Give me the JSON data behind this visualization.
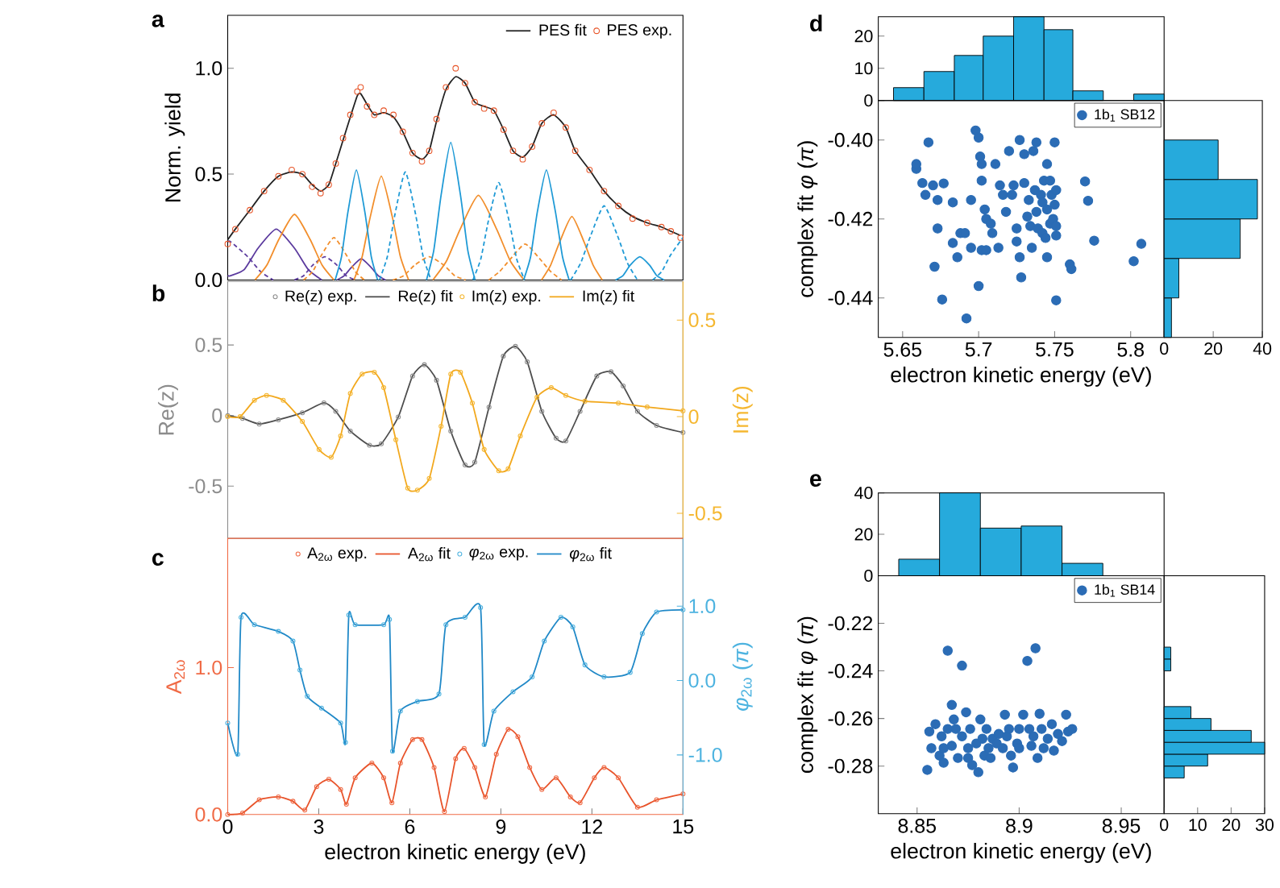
{
  "chart_data": [
    {
      "type": "line",
      "annotations": [
        "a"
      ],
      "ylabel": "Norm. yield",
      "xlim": [
        0,
        15
      ],
      "ylim": [
        0,
        1.25
      ],
      "yticks": [
        {
          "value": 0,
          "label": "0.0"
        },
        0.5,
        {
          "value": 1,
          "label": "1.0"
        }
      ],
      "tick_labels": "y",
      "legend": "top right",
      "series": [
        {
          "name": "PES fit",
          "type": "line",
          "color": "#222222",
          "x": [
            0,
            0.25,
            0.73,
            1.2,
            1.67,
            2.11,
            2.46,
            2.78,
            3.06,
            3.33,
            3.56,
            3.8,
            4.04,
            4.27,
            4.38,
            4.59,
            4.83,
            5.14,
            5.46,
            5.77,
            6.09,
            6.4,
            6.64,
            6.88,
            7.19,
            7.51,
            7.82,
            8.14,
            8.45,
            8.77,
            9.09,
            9.4,
            9.72,
            10.03,
            10.35,
            10.74,
            11.14,
            11.45,
            11.92,
            12.4,
            12.87,
            13.34,
            13.82,
            14.29,
            14.6,
            14.92
          ],
          "values": [
            0.19,
            0.24,
            0.33,
            0.42,
            0.49,
            0.51,
            0.5,
            0.45,
            0.42,
            0.45,
            0.55,
            0.66,
            0.77,
            0.87,
            0.88,
            0.83,
            0.78,
            0.79,
            0.77,
            0.7,
            0.6,
            0.57,
            0.61,
            0.75,
            0.9,
            0.96,
            0.93,
            0.84,
            0.82,
            0.8,
            0.71,
            0.61,
            0.58,
            0.63,
            0.74,
            0.78,
            0.72,
            0.61,
            0.52,
            0.42,
            0.35,
            0.3,
            0.27,
            0.25,
            0.23,
            0.21
          ]
        },
        {
          "name": "PES exp.",
          "type": "scatter",
          "marker": "circle",
          "color": "#e8562a",
          "x": [
            0,
            0.25,
            0.73,
            1.2,
            1.67,
            2.11,
            2.46,
            2.78,
            3.06,
            3.33,
            3.56,
            3.8,
            4.04,
            4.27,
            4.38,
            4.59,
            4.83,
            5.14,
            5.46,
            5.77,
            6.09,
            6.4,
            6.64,
            6.88,
            7.19,
            7.51,
            7.82,
            8.14,
            8.45,
            8.77,
            9.09,
            9.4,
            9.72,
            10.03,
            10.35,
            10.74,
            11.14,
            11.45,
            11.92,
            12.4,
            12.87,
            13.34,
            13.82,
            14.29,
            14.6,
            14.92
          ],
          "values": [
            0.17,
            0.24,
            0.33,
            0.42,
            0.49,
            0.52,
            0.5,
            0.44,
            0.41,
            0.45,
            0.55,
            0.67,
            0.78,
            0.89,
            0.91,
            0.82,
            0.78,
            0.8,
            0.78,
            0.7,
            0.6,
            0.56,
            0.61,
            0.76,
            0.91,
            1.0,
            0.93,
            0.84,
            0.81,
            0.8,
            0.71,
            0.61,
            0.57,
            0.63,
            0.74,
            0.79,
            0.72,
            0.61,
            0.52,
            0.42,
            0.35,
            0.29,
            0.27,
            0.25,
            0.23,
            0.2
          ]
        },
        {
          "type": "line",
          "color": "#5b3a9e",
          "line_style": "solid",
          "x": [
            0,
            0.1,
            0.55,
            1.0,
            1.6,
            2.2,
            2.65,
            3.1
          ],
          "values": [
            0.02,
            0.02,
            0.05,
            0.15,
            0.24,
            0.15,
            0.05,
            0
          ]
        },
        {
          "type": "line",
          "color": "#5b3a9e",
          "line_style": "dashed",
          "x": [
            0,
            0.1,
            0.66,
            1.08,
            1.5
          ],
          "values": [
            0.18,
            0.18,
            0.11,
            0.04,
            0
          ]
        },
        {
          "type": "line",
          "color": "#5b3a9e",
          "line_style": "dashed",
          "x": [
            2.2,
            2.5,
            2.8,
            3.2,
            3.6,
            3.9,
            4.2
          ],
          "values": [
            0,
            0.02,
            0.07,
            0.11,
            0.07,
            0.02,
            0
          ]
        },
        {
          "type": "line",
          "color": "#5b3a9e",
          "line_style": "solid",
          "x": [
            3.6,
            3.84,
            4.08,
            4.4,
            4.72,
            4.96,
            5.2
          ],
          "values": [
            0,
            0.02,
            0.06,
            0.1,
            0.06,
            0.02,
            0
          ]
        },
        {
          "type": "line",
          "color": "#f28e2b",
          "line_style": "solid",
          "x": [
            0.9,
            1.29,
            1.68,
            2.2,
            2.72,
            3.11,
            3.5
          ],
          "values": [
            0,
            0.07,
            0.19,
            0.31,
            0.19,
            0.07,
            0
          ]
        },
        {
          "type": "line",
          "color": "#f28e2b",
          "line_style": "solid",
          "x": [
            4.16,
            4.43,
            4.7,
            5.06,
            5.42,
            5.69,
            5.96
          ],
          "values": [
            0,
            0.11,
            0.3,
            0.49,
            0.3,
            0.11,
            0
          ]
        },
        {
          "type": "line",
          "color": "#f28e2b",
          "line_style": "solid",
          "x": [
            6.76,
            7.21,
            7.66,
            8.26,
            8.86,
            9.31,
            9.76
          ],
          "values": [
            0,
            0.09,
            0.24,
            0.4,
            0.24,
            0.09,
            0
          ]
        },
        {
          "type": "line",
          "color": "#f28e2b",
          "line_style": "solid",
          "x": [
            10.34,
            10.64,
            10.94,
            11.34,
            11.74,
            12.04,
            12.34
          ],
          "values": [
            0,
            0.07,
            0.18,
            0.3,
            0.18,
            0.07,
            0
          ]
        },
        {
          "type": "line",
          "color": "#f28e2b",
          "line_style": "dashed",
          "x": [
            2.5,
            2.8,
            3.1,
            3.5,
            3.9,
            4.2,
            4.5
          ],
          "values": [
            0,
            0.04,
            0.12,
            0.2,
            0.12,
            0.04,
            0
          ]
        },
        {
          "type": "line",
          "color": "#f28e2b",
          "line_style": "dashed",
          "x": [
            5.44,
            5.8,
            6.16,
            6.64,
            7.12,
            7.48,
            7.84
          ],
          "values": [
            0,
            0.02,
            0.07,
            0.11,
            0.07,
            0.02,
            0
          ]
        },
        {
          "type": "line",
          "color": "#f28e2b",
          "line_style": "dashed",
          "x": [
            8.6,
            8.96,
            9.32,
            9.8,
            10.28,
            10.64,
            11.0
          ],
          "values": [
            0,
            0.04,
            0.1,
            0.17,
            0.1,
            0.04,
            0
          ]
        },
        {
          "type": "line",
          "color": "#1f9ad6",
          "line_style": "solid",
          "x": [
            3.54,
            3.75,
            3.96,
            4.24,
            4.52,
            4.73,
            4.94
          ],
          "values": [
            0,
            0.11,
            0.32,
            0.52,
            0.32,
            0.11,
            0
          ]
        },
        {
          "type": "line",
          "color": "#1f9ad6",
          "line_style": "solid",
          "x": [
            6.55,
            6.79,
            7.03,
            7.35,
            7.67,
            7.91,
            8.15
          ],
          "values": [
            0,
            0.14,
            0.4,
            0.65,
            0.4,
            0.14,
            0
          ]
        },
        {
          "type": "line",
          "color": "#1f9ad6",
          "line_style": "solid",
          "x": [
            9.75,
            9.98,
            10.2,
            10.5,
            10.8,
            11.03,
            11.25
          ],
          "values": [
            0,
            0.11,
            0.32,
            0.52,
            0.32,
            0.11,
            0
          ]
        },
        {
          "type": "line",
          "color": "#1f9ad6",
          "line_style": "solid",
          "x": [
            12.78,
            13.02,
            13.26,
            13.58,
            13.9,
            14.14,
            14.38
          ],
          "values": [
            0,
            0.02,
            0.07,
            0.11,
            0.07,
            0.02,
            0
          ]
        },
        {
          "type": "line",
          "color": "#1f9ad6",
          "line_style": "dashed",
          "x": [
            5.0,
            5.26,
            5.51,
            5.85,
            6.19,
            6.44,
            6.7
          ],
          "values": [
            0,
            0.11,
            0.31,
            0.51,
            0.31,
            0.11,
            0
          ]
        },
        {
          "type": "line",
          "color": "#1f9ad6",
          "line_style": "dashed",
          "x": [
            8.08,
            8.34,
            8.59,
            8.93,
            9.27,
            9.52,
            9.78
          ],
          "values": [
            0,
            0.1,
            0.28,
            0.46,
            0.28,
            0.1,
            0
          ]
        },
        {
          "type": "line",
          "color": "#1f9ad6",
          "line_style": "dashed",
          "x": [
            11.3,
            11.63,
            11.96,
            12.4,
            12.84,
            13.17,
            13.5
          ],
          "values": [
            0,
            0.08,
            0.21,
            0.35,
            0.21,
            0.08,
            0
          ]
        },
        {
          "type": "line",
          "color": "#1f9ad6",
          "line_style": "dashed",
          "x": [
            14.0,
            14.3,
            14.6,
            15
          ],
          "values": [
            0,
            0.04,
            0.12,
            0.2
          ]
        }
      ]
    },
    {
      "type": "line",
      "annotations": [
        "b"
      ],
      "ylabel": "Re(z)",
      "y2label": "Im(z)",
      "xlim": [
        0,
        15
      ],
      "ylim": [
        -0.87,
        0.95
      ],
      "yticks": [
        -0.5,
        0,
        0.5
      ],
      "y2lim": [
        -0.63,
        0.7
      ],
      "y2ticks": [
        -0.5,
        0,
        0.5
      ],
      "tick_labels": "y",
      "legend": "top",
      "series": [
        {
          "name": "Re(z) exp.",
          "type": "scatter",
          "marker": "circle",
          "color": "#8c8c8c",
          "x": [
            0,
            0.49,
            1.04,
            1.67,
            2.46,
            3.17,
            3.56,
            4.04,
            4.67,
            5.06,
            5.62,
            6.09,
            6.48,
            6.88,
            7.35,
            7.82,
            8.14,
            8.61,
            9.08,
            9.48,
            9.87,
            10.35,
            10.82,
            11.14,
            11.61,
            12.16,
            12.63,
            13.03,
            13.5,
            14.13,
            15
          ],
          "values": [
            0,
            -0.02,
            -0.06,
            -0.03,
            0.02,
            0.09,
            0.03,
            -0.11,
            -0.21,
            -0.2,
            -0.01,
            0.28,
            0.36,
            0.25,
            -0.11,
            -0.35,
            -0.33,
            0.06,
            0.42,
            0.49,
            0.38,
            0.03,
            -0.16,
            -0.18,
            0.03,
            0.28,
            0.31,
            0.21,
            0.03,
            -0.07,
            -0.12
          ]
        },
        {
          "name": "Re(z) fit",
          "type": "line",
          "color": "#4d4d4d",
          "x": [
            0,
            0.49,
            1.04,
            1.67,
            2.46,
            3.17,
            3.56,
            4.04,
            4.67,
            5.06,
            5.62,
            6.09,
            6.48,
            6.88,
            7.35,
            7.82,
            8.14,
            8.61,
            9.08,
            9.48,
            9.87,
            10.35,
            10.82,
            11.14,
            11.61,
            12.16,
            12.63,
            13.03,
            13.5,
            14.13,
            15
          ],
          "values": [
            0,
            -0.02,
            -0.06,
            -0.03,
            0.02,
            0.09,
            0.03,
            -0.11,
            -0.21,
            -0.2,
            -0.01,
            0.28,
            0.36,
            0.25,
            -0.11,
            -0.35,
            -0.33,
            0.06,
            0.42,
            0.49,
            0.38,
            0.03,
            -0.16,
            -0.18,
            0.03,
            0.28,
            0.31,
            0.21,
            0.03,
            -0.07,
            -0.12
          ]
        },
        {
          "name": "Im(z) exp.",
          "type": "scatter",
          "marker": "circle",
          "axis": "y2",
          "color": "#f5b730",
          "x": [
            0,
            0.41,
            0.88,
            1.28,
            1.83,
            2.46,
            3.01,
            3.41,
            3.72,
            4.04,
            4.43,
            4.83,
            5.14,
            5.54,
            5.93,
            6.25,
            6.64,
            7.03,
            7.35,
            7.67,
            8.06,
            8.45,
            8.93,
            9.24,
            9.64,
            10.19,
            10.66,
            11.14,
            11.77,
            12.87,
            13.82,
            15
          ],
          "values": [
            0,
            0,
            0.085,
            0.11,
            0.085,
            -0.025,
            -0.17,
            -0.21,
            -0.1,
            0.12,
            0.22,
            0.23,
            0.15,
            -0.12,
            -0.37,
            -0.38,
            -0.32,
            -0.05,
            0.22,
            0.23,
            0.07,
            -0.17,
            -0.28,
            -0.27,
            -0.1,
            0.1,
            0.15,
            0.11,
            0.08,
            0.07,
            0.05,
            0.03
          ]
        },
        {
          "name": "Im(z) fit",
          "type": "line",
          "axis": "y2",
          "color": "#f2a81d",
          "x": [
            0,
            0.41,
            0.88,
            1.28,
            1.83,
            2.46,
            3.01,
            3.41,
            3.72,
            4.04,
            4.43,
            4.83,
            5.14,
            5.54,
            5.93,
            6.25,
            6.64,
            7.03,
            7.35,
            7.67,
            8.06,
            8.45,
            8.93,
            9.24,
            9.64,
            10.19,
            10.66,
            11.14,
            11.77,
            12.87,
            13.82,
            15
          ],
          "values": [
            0,
            0,
            0.085,
            0.11,
            0.085,
            -0.025,
            -0.17,
            -0.21,
            -0.1,
            0.12,
            0.22,
            0.23,
            0.15,
            -0.12,
            -0.37,
            -0.38,
            -0.32,
            -0.05,
            0.22,
            0.23,
            0.07,
            -0.17,
            -0.28,
            -0.27,
            -0.1,
            0.1,
            0.15,
            0.11,
            0.08,
            0.07,
            0.05,
            0.03
          ]
        }
      ]
    },
    {
      "type": "line",
      "annotations": [
        "c"
      ],
      "xlabel": "electron kinetic energy (eV)",
      "ylabel": "A$_{2ω}$",
      "y2label": "*φ*$_{2ω}$ (*π*)",
      "xlim": [
        0,
        15
      ],
      "xticks": [
        0,
        3,
        6,
        9,
        12,
        15
      ],
      "ylim": [
        0,
        1.88
      ],
      "yticks": [
        {
          "value": 0,
          "label": "0.0"
        },
        {
          "value": 1,
          "label": "1.0"
        }
      ],
      "y2lim": [
        -1.8,
        1.91
      ],
      "y2ticks": [
        {
          "value": -1,
          "label": "-1.0"
        },
        {
          "value": 0,
          "label": "0.0"
        },
        {
          "value": 1,
          "label": "1.0"
        }
      ],
      "legend": "top",
      "series": [
        {
          "name": "A$_{2ω}$ exp.",
          "type": "scatter",
          "marker": "circle",
          "color": "#f06a45",
          "x": [
            0,
            0.49,
            1.04,
            1.67,
            2.15,
            2.54,
            2.93,
            3.33,
            3.72,
            3.91,
            4.2,
            4.75,
            5.14,
            5.41,
            5.69,
            6.09,
            6.4,
            6.8,
            7.14,
            7.51,
            7.79,
            8.14,
            8.49,
            8.85,
            9.24,
            9.56,
            9.95,
            10.35,
            10.82,
            11.29,
            11.61,
            12.08,
            12.4,
            12.87,
            13.5,
            14.13,
            15
          ],
          "values": [
            0,
            0.01,
            0.1,
            0.12,
            0.09,
            0.03,
            0.19,
            0.24,
            0.17,
            0.07,
            0.25,
            0.35,
            0.25,
            0.08,
            0.35,
            0.51,
            0.51,
            0.32,
            0.02,
            0.38,
            0.45,
            0.32,
            0.12,
            0.41,
            0.58,
            0.53,
            0.32,
            0.17,
            0.25,
            0.12,
            0.08,
            0.25,
            0.32,
            0.25,
            0.05,
            0.1,
            0.14
          ]
        },
        {
          "name": "A$_{2ω}$ fit",
          "type": "line",
          "color": "#e8532a",
          "x": [
            0,
            0.49,
            1.04,
            1.67,
            2.15,
            2.54,
            2.93,
            3.33,
            3.72,
            3.91,
            4.2,
            4.75,
            5.14,
            5.41,
            5.69,
            6.09,
            6.4,
            6.8,
            7.14,
            7.51,
            7.79,
            8.14,
            8.49,
            8.85,
            9.24,
            9.56,
            9.95,
            10.35,
            10.82,
            11.29,
            11.61,
            12.08,
            12.4,
            12.87,
            13.5,
            14.13,
            15
          ],
          "values": [
            0,
            0.01,
            0.1,
            0.12,
            0.09,
            0.03,
            0.19,
            0.24,
            0.17,
            0.07,
            0.25,
            0.35,
            0.25,
            0.08,
            0.35,
            0.51,
            0.51,
            0.32,
            0.02,
            0.38,
            0.45,
            0.32,
            0.12,
            0.41,
            0.58,
            0.53,
            0.32,
            0.17,
            0.25,
            0.12,
            0.08,
            0.25,
            0.32,
            0.25,
            0.05,
            0.1,
            0.14
          ]
        },
        {
          "name": "*φ*$_{2ω}$ exp.",
          "type": "scatter",
          "marker": "circle",
          "axis": "y2",
          "color": "#4db3e0",
          "x": [
            0,
            0.33,
            0.44,
            0.88,
            1.67,
            2.15,
            2.38,
            2.62,
            3.09,
            3.72,
            3.88,
            3.99,
            4.2,
            5.14,
            5.33,
            5.43,
            5.69,
            6.25,
            6.96,
            7.19,
            7.82,
            8.33,
            8.45,
            8.77,
            9.4,
            10.03,
            10.43,
            10.98,
            11.37,
            11.77,
            12.4,
            13.26,
            13.66,
            14.13,
            15
          ],
          "values": [
            -0.57,
            -0.99,
            0.85,
            0.75,
            0.66,
            0.53,
            0.14,
            -0.21,
            -0.37,
            -0.57,
            -0.83,
            0.88,
            0.75,
            0.75,
            0.82,
            -0.95,
            -0.41,
            -0.28,
            -0.18,
            0.75,
            0.85,
            0.98,
            -0.86,
            -0.41,
            -0.15,
            0.05,
            0.53,
            0.85,
            0.72,
            0.21,
            0.05,
            0.11,
            0.63,
            0.92,
            0.95
          ]
        },
        {
          "name": "*φ*$_{2ω}$ fit",
          "type": "line",
          "axis": "y2",
          "color": "#1f88c7",
          "x": [
            0,
            0.33,
            0.44,
            0.88,
            1.67,
            2.15,
            2.38,
            2.62,
            3.09,
            3.72,
            3.88,
            3.99,
            4.2,
            5.14,
            5.33,
            5.43,
            5.69,
            6.25,
            6.96,
            7.19,
            7.82,
            8.33,
            8.45,
            8.77,
            9.4,
            10.03,
            10.43,
            10.98,
            11.37,
            11.77,
            12.4,
            13.26,
            13.66,
            14.13,
            15
          ],
          "values": [
            -0.57,
            -0.99,
            0.85,
            0.75,
            0.66,
            0.53,
            0.14,
            -0.21,
            -0.37,
            -0.57,
            -0.83,
            0.88,
            0.75,
            0.75,
            0.82,
            -0.95,
            -0.41,
            -0.28,
            -0.18,
            0.75,
            0.85,
            0.98,
            -0.86,
            -0.41,
            -0.15,
            0.05,
            0.53,
            0.85,
            0.72,
            0.21,
            0.05,
            0.11,
            0.63,
            0.92,
            0.95
          ]
        }
      ]
    },
    {
      "type": "histogram",
      "annotations": [
        "d"
      ],
      "bins": [
        5.644,
        5.664,
        5.684,
        5.703,
        5.723,
        5.743,
        5.762,
        5.782,
        5.802,
        5.822
      ],
      "values": [
        4,
        9,
        14,
        20,
        26,
        22,
        3,
        0,
        2
      ],
      "color": "#26aadc",
      "xlim": [
        5.634,
        5.822
      ],
      "ylim": [
        0,
        26
      ],
      "yticks": [
        0,
        10,
        20
      ],
      "tick_labels": "y"
    },
    {
      "type": "scatter",
      "xlabel": "electron kinetic energy (eV)",
      "ylabel": "complex fit *φ* (*π*)",
      "xlim": [
        5.634,
        5.822
      ],
      "ylim": [
        -0.45,
        -0.39
      ],
      "xticks": [
        5.65,
        5.7,
        5.75,
        5.8
      ],
      "yticks": [
        {
          "value": -0.4,
          "label": "-0.40"
        },
        -0.42,
        -0.44
      ],
      "legend": "top right",
      "series": [
        {
          "name": "1b$_{1}$ SB12",
          "type": "scatter",
          "marker": "circle",
          "color": "#2b6cb5",
          "x": [
            5.659,
            5.659,
            5.663,
            5.665,
            5.667,
            5.67,
            5.673,
            5.673,
            5.671,
            5.676,
            5.677,
            5.683,
            5.683,
            5.686,
            5.688,
            5.691,
            5.692,
            5.695,
            5.695,
            5.698,
            5.7,
            5.701,
            5.702,
            5.702,
            5.7,
            5.702,
            5.704,
            5.705,
            5.705,
            5.708,
            5.709,
            5.711,
            5.713,
            5.714,
            5.716,
            5.718,
            5.72,
            5.722,
            5.723,
            5.725,
            5.725,
            5.727,
            5.727,
            5.728,
            5.73,
            5.73,
            5.732,
            5.733,
            5.734,
            5.735,
            5.736,
            5.737,
            5.738,
            5.738,
            5.739,
            5.741,
            5.742,
            5.742,
            5.743,
            5.744,
            5.745,
            5.745,
            5.745,
            5.747,
            5.747,
            5.748,
            5.749,
            5.75,
            5.75,
            5.751,
            5.751,
            5.751,
            5.751,
            5.76,
            5.761,
            5.77,
            5.772,
            5.776,
            5.802,
            5.807
          ],
          "values": [
            -0.4073,
            -0.4061,
            -0.4109,
            -0.4139,
            -0.4006,
            -0.4115,
            -0.4152,
            -0.4224,
            -0.4321,
            -0.4404,
            -0.411,
            -0.4158,
            -0.4261,
            -0.4297,
            -0.4236,
            -0.4236,
            -0.4452,
            -0.4152,
            -0.4273,
            -0.3976,
            -0.3994,
            -0.4042,
            -0.4061,
            -0.4103,
            -0.437,
            -0.4279,
            -0.4176,
            -0.42,
            -0.4279,
            -0.4212,
            -0.4236,
            -0.4061,
            -0.4273,
            -0.4115,
            -0.4139,
            -0.4182,
            -0.4028,
            -0.4139,
            -0.4115,
            -0.4224,
            -0.4257,
            -0.4297,
            -0.4,
            -0.4348,
            -0.4036,
            -0.4109,
            -0.4194,
            -0.4152,
            -0.4218,
            -0.4273,
            -0.4028,
            -0.4127,
            -0.4182,
            -0.4006,
            -0.4224,
            -0.4139,
            -0.4158,
            -0.4236,
            -0.4103,
            -0.4248,
            -0.4061,
            -0.4176,
            -0.4297,
            -0.4103,
            -0.4212,
            -0.4139,
            -0.42,
            -0.4006,
            -0.4164,
            -0.4127,
            -0.4242,
            -0.4406,
            -0.4218,
            -0.4315,
            -0.4327,
            -0.4105,
            -0.4154,
            -0.4255,
            -0.4307,
            -0.4263
          ]
        }
      ]
    },
    {
      "type": "histogram",
      "orientation": "horizontal",
      "bins": [
        -0.45,
        -0.44,
        -0.43,
        -0.42,
        -0.41,
        -0.4,
        -0.39
      ],
      "values": [
        3,
        6,
        31,
        38,
        22,
        0
      ],
      "color": "#26aadc",
      "xlim": [
        0,
        40
      ],
      "ylim": [
        -0.45,
        -0.39
      ],
      "xticks": [
        0,
        20,
        40
      ],
      "tick_labels": "x"
    },
    {
      "type": "histogram",
      "annotations": [
        "e"
      ],
      "bins": [
        8.841,
        8.861,
        8.881,
        8.901,
        8.921,
        8.941
      ],
      "values": [
        8,
        40,
        23,
        24,
        6
      ],
      "color": "#26aadc",
      "xlim": [
        8.831,
        8.971
      ],
      "ylim": [
        0,
        40
      ],
      "yticks": [
        0,
        20,
        40
      ],
      "tick_labels": "y"
    },
    {
      "type": "scatter",
      "xlabel": "electron kinetic energy (eV)",
      "ylabel": "complex fit *φ* (*π*)",
      "xlim": [
        8.831,
        8.971
      ],
      "ylim": [
        -0.3,
        -0.2
      ],
      "xticks": [
        8.85,
        8.9,
        8.95
      ],
      "yticks": [
        -0.22,
        -0.24,
        -0.26,
        -0.28
      ],
      "legend": "top right",
      "series": [
        {
          "name": "1b$_{1}$ SB14",
          "type": "scatter",
          "marker": "circle",
          "color": "#2b6cb5",
          "x": [
            8.865,
            8.872,
            8.904,
            8.908,
            8.855,
            8.856,
            8.857,
            8.859,
            8.861,
            8.862,
            8.863,
            8.865,
            8.867,
            8.867,
            8.869,
            8.87,
            8.872,
            8.874,
            8.875,
            8.876,
            8.877,
            8.879,
            8.88,
            8.881,
            8.882,
            8.883,
            8.884,
            8.885,
            8.887,
            8.889,
            8.89,
            8.892,
            8.893,
            8.894,
            8.895,
            8.896,
            8.897,
            8.899,
            8.9,
            8.902,
            8.905,
            8.906,
            8.907,
            8.909,
            8.91,
            8.911,
            8.912,
            8.914,
            8.916,
            8.917,
            8.919,
            8.921,
            8.923,
            8.924,
            8.926,
            8.868,
            8.863,
            8.875,
            8.886,
            8.9
          ],
          "values": [
            -0.2315,
            -0.2378,
            -0.2358,
            -0.2305,
            -0.2816,
            -0.2655,
            -0.2725,
            -0.2624,
            -0.2756,
            -0.2675,
            -0.2786,
            -0.2644,
            -0.2543,
            -0.2715,
            -0.2644,
            -0.2766,
            -0.2675,
            -0.2574,
            -0.2725,
            -0.2644,
            -0.2796,
            -0.2705,
            -0.2826,
            -0.2604,
            -0.2685,
            -0.2756,
            -0.2644,
            -0.2725,
            -0.2685,
            -0.2705,
            -0.2665,
            -0.2725,
            -0.2584,
            -0.2675,
            -0.2644,
            -0.2756,
            -0.2806,
            -0.2705,
            -0.2644,
            -0.2584,
            -0.2644,
            -0.2715,
            -0.2675,
            -0.2766,
            -0.258,
            -0.2644,
            -0.2725,
            -0.2685,
            -0.2624,
            -0.2735,
            -0.2665,
            -0.2695,
            -0.2584,
            -0.2655,
            -0.2644,
            -0.2604,
            -0.2725,
            -0.2766,
            -0.2766,
            -0.2725
          ]
        }
      ]
    },
    {
      "type": "histogram",
      "orientation": "horizontal",
      "bins": [
        -0.285,
        -0.28,
        -0.275,
        -0.27,
        -0.265,
        -0.26,
        -0.255,
        -0.25,
        -0.245,
        -0.24,
        -0.235,
        -0.23
      ],
      "values": [
        6,
        13,
        30,
        26,
        14,
        8,
        0,
        0,
        0,
        2,
        2
      ],
      "color": "#26aadc",
      "xlim": [
        0,
        30
      ],
      "ylim": [
        -0.3,
        -0.2
      ],
      "xticks": [
        0,
        10,
        20,
        30
      ],
      "tick_labels": "x"
    }
  ]
}
